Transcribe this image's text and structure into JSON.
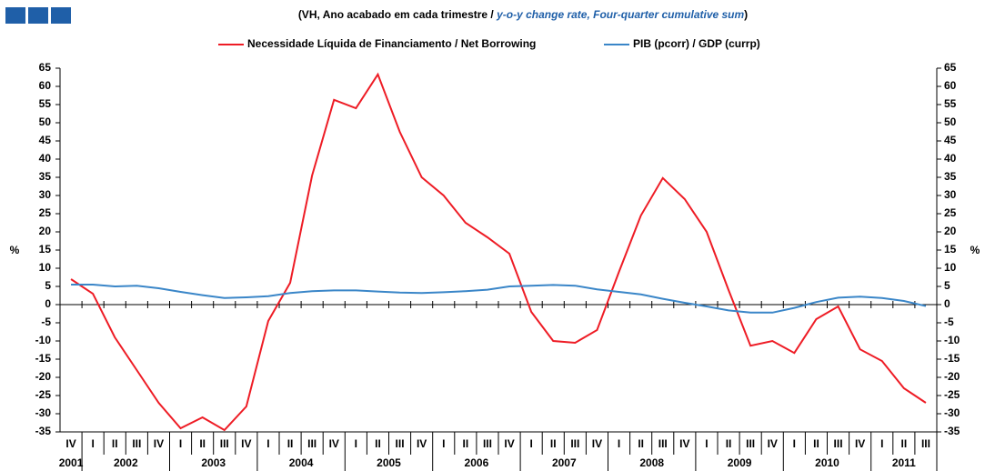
{
  "chart_data": {
    "type": "line",
    "title": {
      "prefix": "(VH, Ano acabado em cada trimestre / ",
      "highlight": "y-o-y change rate, Four-quarter cumulative sum",
      "suffix": ")"
    },
    "ylabel": "%",
    "y2label": "%",
    "categories": [
      "IV",
      "I",
      "II",
      "III",
      "IV",
      "I",
      "II",
      "III",
      "IV",
      "I",
      "II",
      "III",
      "IV",
      "I",
      "II",
      "III",
      "IV",
      "I",
      "II",
      "III",
      "IV",
      "I",
      "II",
      "III",
      "IV",
      "I",
      "II",
      "III",
      "IV",
      "I",
      "II",
      "III",
      "IV",
      "I",
      "II",
      "III",
      "IV",
      "I",
      "II",
      "III"
    ],
    "years": [
      "2001",
      "2002",
      "2003",
      "2004",
      "2005",
      "2006",
      "2007",
      "2008",
      "2009",
      "2010",
      "2011"
    ],
    "series": [
      {
        "name": "Necessidade Líquida de Financiamento / Net Borrowing",
        "color": "#ee1c25",
        "values": [
          7,
          3,
          -9,
          -18,
          -27,
          -34,
          -31,
          -34.5,
          -28,
          -4.5,
          6,
          35.5,
          56.3,
          54,
          63.3,
          47.5,
          35,
          30,
          22.5,
          18.5,
          14,
          -2,
          -10,
          -10.5,
          -7,
          9,
          24.5,
          34.8,
          29,
          20,
          4,
          -11.3,
          -10,
          -13.3,
          -4,
          -0.5,
          -12.3,
          -15.5,
          -23,
          -27
        ]
      },
      {
        "name": "PIB (pcorr) / GDP (currp)",
        "color": "#3a86c8",
        "values": [
          5.5,
          5.5,
          5,
          5.2,
          4.5,
          3.5,
          2.6,
          1.8,
          2,
          2.3,
          3.2,
          3.7,
          3.9,
          3.9,
          3.6,
          3.3,
          3.2,
          3.4,
          3.7,
          4.1,
          5,
          5.2,
          5.4,
          5.2,
          4.2,
          3.5,
          2.8,
          1.6,
          0.5,
          -0.5,
          -1.6,
          -2.2,
          -2.2,
          -0.9,
          0.7,
          1.9,
          2.2,
          1.8,
          1,
          -0.4
        ]
      }
    ],
    "ylim": [
      -35,
      65
    ],
    "yticks": [
      -35,
      -30,
      -25,
      -20,
      -15,
      -10,
      -5,
      0,
      5,
      10,
      15,
      20,
      25,
      30,
      35,
      40,
      45,
      50,
      55,
      60,
      65
    ],
    "y2lim": [
      -35,
      65
    ],
    "y2ticks": [
      -35,
      -30,
      -25,
      -20,
      -15,
      -10,
      -5,
      0,
      5,
      10,
      15,
      20,
      25,
      30,
      35,
      40,
      45,
      50,
      55,
      60,
      65
    ],
    "grid": false
  }
}
